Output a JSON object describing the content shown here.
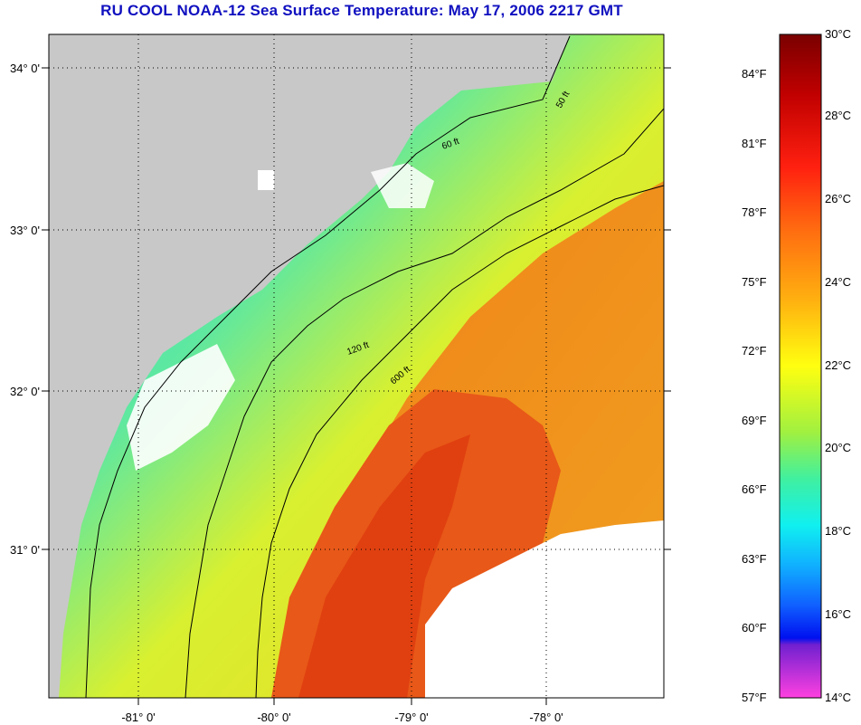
{
  "title": "RU COOL  NOAA-12  Sea Surface Temperature:  May 17, 2006 2217 GMT",
  "map": {
    "lon_labels": [
      "-81° 0'",
      "-80° 0'",
      "-79° 0'",
      "-78° 0'"
    ],
    "lat_labels": [
      "34° 0'",
      "33° 0'",
      "32° 0'",
      "31° 0'"
    ],
    "contour_labels": [
      "50 ft",
      "60 ft",
      "120 ft",
      "600 ft"
    ],
    "colors": {
      "land": "#c8c8c8",
      "cloud": "#ffffff",
      "warm": "#e84818",
      "cool": "#40e0b8"
    }
  },
  "colorbar": {
    "fahrenheit_labels": [
      "84°F",
      "81°F",
      "78°F",
      "75°F",
      "72°F",
      "69°F",
      "66°F",
      "63°F",
      "60°F",
      "57°F"
    ],
    "celsius_labels": [
      "30°C",
      "28°C",
      "26°C",
      "24°C",
      "22°C",
      "20°C",
      "18°C",
      "16°C",
      "14°C"
    ],
    "celsius_range": [
      14,
      30
    ]
  }
}
